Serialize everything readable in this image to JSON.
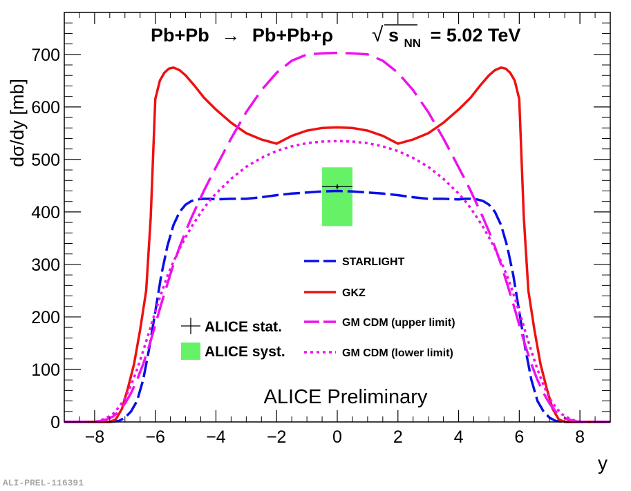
{
  "figure_id": "ALI-PREL-116391",
  "chart_data": {
    "type": "line",
    "title": {
      "reaction_lhs": "Pb+Pb",
      "arrow": "→",
      "reaction_rhs": "Pb+Pb+ρ",
      "sqrt": "√",
      "energy_var": "s",
      "energy_sub": "NN",
      "energy_value": "= 5.02 TeV"
    },
    "xlabel": "y",
    "ylabel": "dσ/dy [mb]",
    "xlim": [
      -9,
      9
    ],
    "ylim": [
      0,
      780
    ],
    "xticks": [
      -8,
      -6,
      -4,
      -2,
      0,
      2,
      4,
      6,
      8
    ],
    "yticks": [
      0,
      100,
      200,
      300,
      400,
      500,
      600,
      700
    ],
    "watermark": "ALICE Preliminary",
    "colors": {
      "starlight": "#0a10e6",
      "gkz": "#ee1111",
      "gm": "#ee11ee",
      "syst": "#66f266",
      "axis": "#000000"
    },
    "series": [
      {
        "name": "STARLIGHT",
        "style": "dashed",
        "x": [
          -9,
          -8,
          -7.5,
          -7.2,
          -7.0,
          -6.8,
          -6.6,
          -6.4,
          -6.2,
          -6.0,
          -5.8,
          -5.6,
          -5.4,
          -5.2,
          -5.0,
          -4.8,
          -4.6,
          -4.4,
          -4.2,
          -4.0,
          -3.5,
          -3.0,
          -2.5,
          -2.0,
          -1.5,
          -1.0,
          -0.5,
          0,
          0.5,
          1.0,
          1.5,
          2.0,
          2.5,
          3.0,
          3.5,
          4.0,
          4.2,
          4.4,
          4.6,
          4.8,
          5.0,
          5.2,
          5.4,
          5.6,
          5.8,
          6.0,
          6.2,
          6.4,
          6.6,
          6.8,
          7.0,
          7.2,
          7.5,
          8,
          9
        ],
        "values": [
          0,
          0,
          0,
          2,
          8,
          20,
          40,
          80,
          140,
          210,
          280,
          335,
          375,
          400,
          414,
          421,
          424,
          425,
          425,
          424,
          425,
          425,
          428,
          432,
          435,
          437,
          439,
          440,
          439,
          437,
          435,
          432,
          428,
          425,
          425,
          424,
          425,
          425,
          424,
          421,
          414,
          400,
          375,
          335,
          280,
          210,
          140,
          80,
          40,
          20,
          8,
          2,
          0,
          0,
          0
        ]
      },
      {
        "name": "GKZ",
        "style": "solid",
        "x": [
          -9,
          -8,
          -7.5,
          -7.3,
          -7.1,
          -6.9,
          -6.7,
          -6.5,
          -6.3,
          -6.15,
          -6.0,
          -5.85,
          -5.7,
          -5.55,
          -5.4,
          -5.2,
          -5.0,
          -4.7,
          -4.4,
          -4.0,
          -3.5,
          -3.0,
          -2.5,
          -2.0,
          -1.5,
          -1.0,
          -0.5,
          0,
          0.5,
          1.0,
          1.5,
          2.0,
          2.5,
          3.0,
          3.5,
          4.0,
          4.4,
          4.7,
          5.0,
          5.2,
          5.4,
          5.55,
          5.7,
          5.85,
          6.0,
          6.15,
          6.3,
          6.5,
          6.7,
          6.9,
          7.1,
          7.3,
          7.5,
          8,
          9
        ],
        "values": [
          0,
          0,
          0,
          5,
          25,
          65,
          110,
          175,
          250,
          390,
          615,
          650,
          665,
          673,
          675,
          670,
          660,
          640,
          618,
          595,
          570,
          550,
          538,
          530,
          545,
          555,
          560,
          561,
          560,
          555,
          545,
          530,
          538,
          550,
          570,
          595,
          618,
          640,
          660,
          670,
          675,
          673,
          665,
          650,
          615,
          390,
          250,
          175,
          110,
          65,
          25,
          5,
          0,
          0,
          0
        ]
      },
      {
        "name": "GM CDM (upper limit)",
        "style": "longdash",
        "x": [
          -9,
          -8,
          -7.8,
          -7.6,
          -7.4,
          -7.2,
          -7.0,
          -6.8,
          -6.6,
          -6.4,
          -6.2,
          -6.0,
          -5.8,
          -5.6,
          -5.4,
          -5.2,
          -5.0,
          -4.8,
          -4.6,
          -4.4,
          -4.2,
          -4.0,
          -3.5,
          -3.0,
          -2.5,
          -2.0,
          -1.5,
          -1.0,
          -0.5,
          0,
          0.5,
          1.0,
          1.5,
          2.0,
          2.5,
          3.0,
          3.5,
          4.0,
          4.2,
          4.4,
          4.6,
          4.8,
          5.0,
          5.2,
          5.4,
          5.6,
          5.8,
          6.0,
          6.2,
          6.4,
          6.6,
          6.8,
          7.0,
          7.2,
          7.4,
          7.6,
          7.8,
          8,
          9
        ],
        "values": [
          0,
          0,
          2,
          5,
          10,
          20,
          35,
          55,
          80,
          110,
          145,
          185,
          225,
          263,
          300,
          333,
          363,
          390,
          415,
          440,
          463,
          485,
          540,
          590,
          632,
          665,
          688,
          700,
          702,
          703,
          702,
          700,
          688,
          665,
          632,
          590,
          540,
          485,
          463,
          440,
          415,
          390,
          363,
          333,
          300,
          263,
          225,
          185,
          145,
          110,
          80,
          55,
          35,
          20,
          10,
          5,
          2,
          0,
          0
        ]
      },
      {
        "name": "GM CDM (lower limit)",
        "style": "dotted",
        "x": [
          -9,
          -8,
          -7.8,
          -7.6,
          -7.4,
          -7.2,
          -7.0,
          -6.8,
          -6.6,
          -6.4,
          -6.2,
          -6.0,
          -5.8,
          -5.6,
          -5.4,
          -5.2,
          -5.0,
          -4.8,
          -4.6,
          -4.4,
          -4.2,
          -4.0,
          -3.5,
          -3.0,
          -2.5,
          -2.0,
          -1.5,
          -1.0,
          -0.5,
          0,
          0.5,
          1.0,
          1.5,
          2.0,
          2.5,
          3.0,
          3.5,
          4.0,
          4.2,
          4.4,
          4.6,
          4.8,
          5.0,
          5.2,
          5.4,
          5.6,
          5.8,
          6.0,
          6.2,
          6.4,
          6.6,
          6.8,
          7.0,
          7.2,
          7.4,
          7.6,
          7.8,
          8,
          9
        ],
        "values": [
          0,
          0,
          3,
          8,
          15,
          28,
          45,
          70,
          100,
          135,
          172,
          210,
          245,
          278,
          305,
          330,
          352,
          372,
          390,
          407,
          422,
          435,
          463,
          486,
          503,
          516,
          525,
          531,
          534,
          535,
          534,
          531,
          525,
          516,
          503,
          486,
          463,
          435,
          422,
          407,
          390,
          372,
          352,
          330,
          305,
          278,
          245,
          210,
          172,
          135,
          100,
          70,
          45,
          28,
          15,
          8,
          3,
          0,
          0
        ]
      }
    ],
    "alice_point": {
      "x": 0,
      "y": 448,
      "xerr": 0.5,
      "stat_err": 5,
      "syst_low": 373,
      "syst_high": 485
    },
    "legend_left": [
      {
        "label": "ALICE stat.",
        "kind": "cross"
      },
      {
        "label": "ALICE syst.",
        "kind": "box"
      }
    ],
    "legend_right": [
      {
        "label": "STARLIGHT",
        "series": 0
      },
      {
        "label": "GKZ",
        "series": 1
      },
      {
        "label": "GM CDM (upper limit)",
        "series": 2
      },
      {
        "label": "GM CDM (lower limit)",
        "series": 3
      }
    ]
  }
}
